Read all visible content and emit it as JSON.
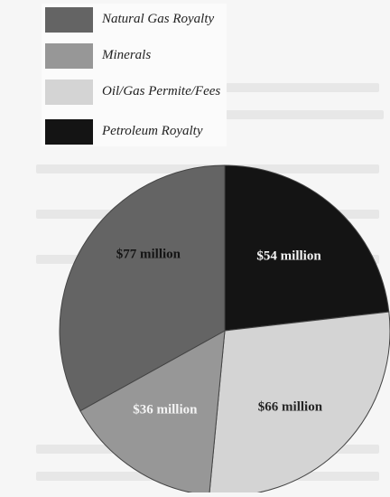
{
  "chart_data": {
    "type": "pie",
    "categories": [
      "Petroleum Royalty",
      "Oil/Gas Permite/Fees",
      "Minerals",
      "Natural Gas Royalty"
    ],
    "values": [
      54,
      66,
      36,
      77
    ],
    "value_labels": [
      "$54 million",
      "$66 million",
      "$36 million",
      "$77 million"
    ],
    "colors": [
      "#141414",
      "#d4d4d4",
      "#979797",
      "#646464"
    ],
    "label_colors": [
      "#f4f4f4",
      "#262626",
      "#f4f4f4",
      "#141414"
    ],
    "legend_placement": "top-left",
    "start_angle_deg": 0,
    "direction": "clockwise"
  },
  "legend": [
    {
      "label": "Natural Gas Royalty",
      "color": "#646464"
    },
    {
      "label": "Minerals",
      "color": "#979797"
    },
    {
      "label": "Oil/Gas Permite/Fees",
      "color": "#d4d4d4"
    },
    {
      "label": "Petroleum Royalty",
      "color": "#141414"
    }
  ]
}
